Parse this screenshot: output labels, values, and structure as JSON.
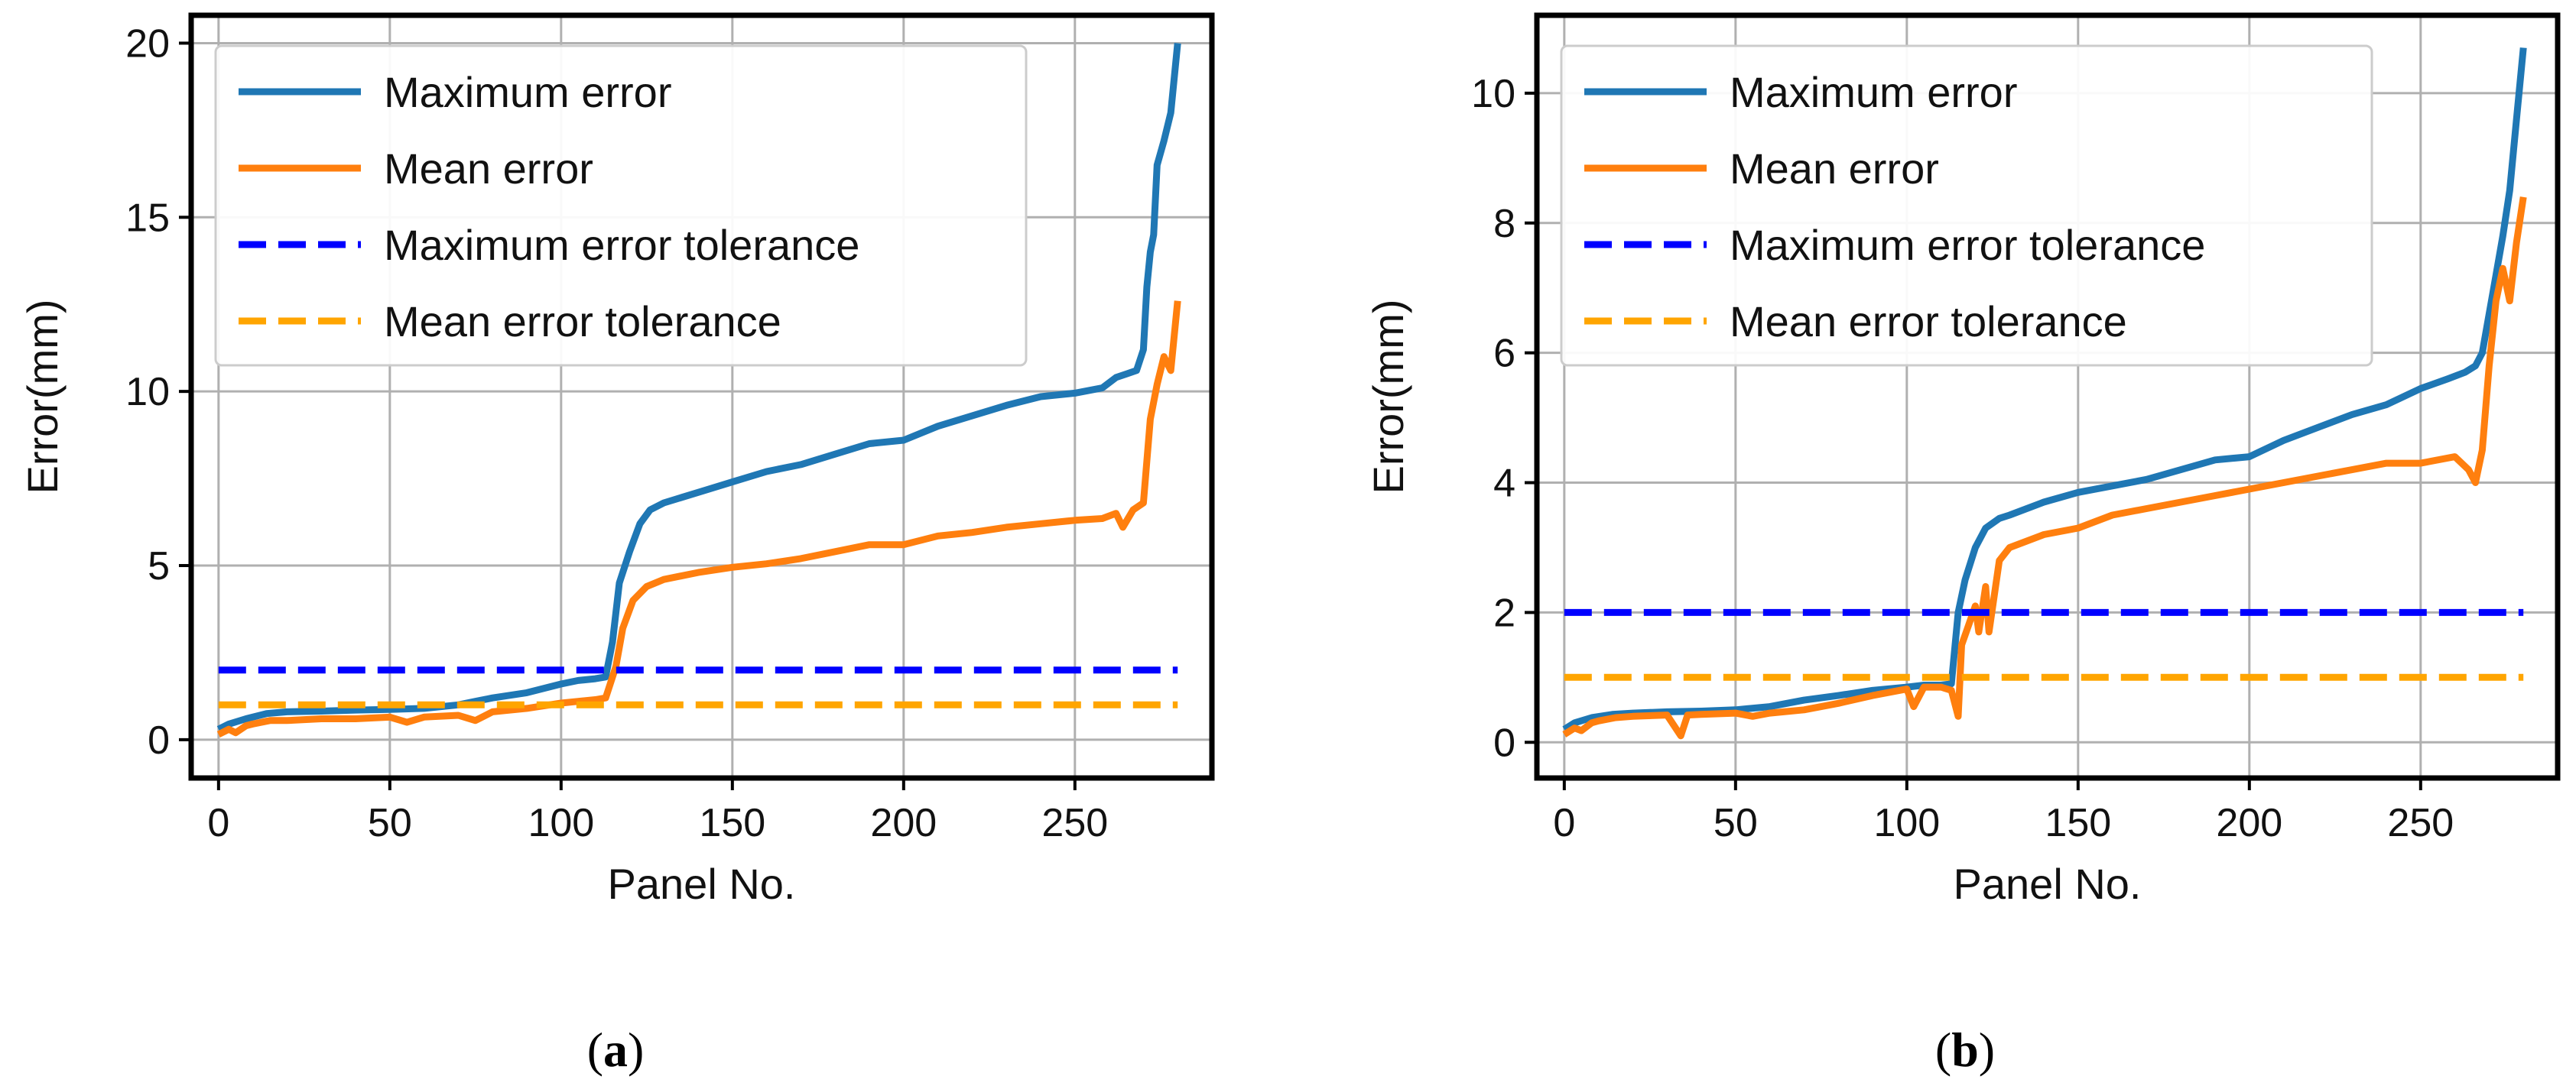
{
  "chart_data": [
    {
      "id": "a",
      "type": "line",
      "caption": "a",
      "xlabel": "Panel No.",
      "ylabel": "Error(mm)",
      "xlim": [
        -8,
        290
      ],
      "ylim": [
        -1.1,
        20.8
      ],
      "xticks": [
        0,
        50,
        100,
        150,
        200,
        250
      ],
      "yticks": [
        0,
        5,
        10,
        15,
        20
      ],
      "grid": true,
      "legend_position": "top-left",
      "colors": {
        "max": "#1f77b4",
        "mean": "#ff7f0e",
        "max_tol": "#0000ff",
        "mean_tol": "#ffa500"
      },
      "series": [
        {
          "key": "max",
          "name": "Maximum error",
          "style": "solid",
          "x": [
            0,
            3,
            8,
            14,
            20,
            30,
            40,
            50,
            60,
            70,
            75,
            80,
            90,
            100,
            105,
            110,
            113,
            115,
            117,
            120,
            123,
            126,
            130,
            140,
            150,
            160,
            170,
            180,
            190,
            200,
            210,
            220,
            230,
            240,
            250,
            258,
            262,
            265,
            268,
            270,
            271,
            272,
            273,
            274,
            276,
            278,
            280
          ],
          "y": [
            0.3,
            0.45,
            0.6,
            0.75,
            0.8,
            0.82,
            0.85,
            0.87,
            0.9,
            1.0,
            1.1,
            1.2,
            1.35,
            1.6,
            1.7,
            1.75,
            1.8,
            2.8,
            4.5,
            5.4,
            6.2,
            6.6,
            6.8,
            7.1,
            7.4,
            7.7,
            7.9,
            8.2,
            8.5,
            8.6,
            9.0,
            9.3,
            9.6,
            9.85,
            9.95,
            10.1,
            10.4,
            10.5,
            10.6,
            11.2,
            13.0,
            14.0,
            14.5,
            16.5,
            17.2,
            18.0,
            20.0
          ]
        },
        {
          "key": "mean",
          "name": "Mean error",
          "style": "solid",
          "x": [
            0,
            3,
            5,
            8,
            10,
            15,
            20,
            30,
            40,
            50,
            55,
            60,
            70,
            75,
            80,
            90,
            100,
            105,
            110,
            113,
            116,
            118,
            121,
            125,
            130,
            140,
            150,
            160,
            170,
            180,
            190,
            200,
            210,
            220,
            230,
            240,
            250,
            258,
            262,
            264,
            267,
            270,
            272,
            274,
            276,
            278,
            280
          ],
          "y": [
            0.15,
            0.3,
            0.2,
            0.4,
            0.45,
            0.55,
            0.55,
            0.6,
            0.6,
            0.65,
            0.5,
            0.65,
            0.7,
            0.55,
            0.8,
            0.9,
            1.05,
            1.1,
            1.15,
            1.2,
            2.1,
            3.2,
            4.0,
            4.4,
            4.6,
            4.8,
            4.95,
            5.05,
            5.2,
            5.4,
            5.6,
            5.6,
            5.85,
            5.95,
            6.1,
            6.2,
            6.3,
            6.35,
            6.5,
            6.1,
            6.6,
            6.8,
            9.2,
            10.2,
            11.0,
            10.6,
            12.6
          ]
        },
        {
          "key": "max_tol",
          "name": "Maximum error tolerance",
          "style": "dashed",
          "x": [
            0,
            280
          ],
          "y": [
            2,
            2
          ]
        },
        {
          "key": "mean_tol",
          "name": "Mean error tolerance",
          "style": "dashed",
          "x": [
            0,
            280
          ],
          "y": [
            1,
            1
          ]
        }
      ]
    },
    {
      "id": "b",
      "type": "line",
      "caption": "b",
      "xlabel": "Panel No.",
      "ylabel": "Error(mm)",
      "xlim": [
        -8,
        290
      ],
      "ylim": [
        -0.55,
        11.2
      ],
      "xticks": [
        0,
        50,
        100,
        150,
        200,
        250
      ],
      "yticks": [
        0,
        2,
        4,
        6,
        8,
        10
      ],
      "grid": true,
      "legend_position": "top-left",
      "colors": {
        "max": "#1f77b4",
        "mean": "#ff7f0e",
        "max_tol": "#0000ff",
        "mean_tol": "#ffa500"
      },
      "series": [
        {
          "key": "max",
          "name": "Maximum error",
          "style": "solid",
          "x": [
            0,
            3,
            8,
            14,
            20,
            30,
            40,
            50,
            60,
            70,
            80,
            90,
            100,
            105,
            110,
            113,
            115,
            117,
            120,
            123,
            127,
            130,
            140,
            150,
            160,
            170,
            180,
            190,
            200,
            210,
            220,
            230,
            240,
            250,
            258,
            263,
            266,
            268,
            270,
            272,
            274,
            276,
            278,
            280
          ],
          "y": [
            0.2,
            0.3,
            0.38,
            0.43,
            0.45,
            0.47,
            0.48,
            0.5,
            0.55,
            0.65,
            0.72,
            0.8,
            0.85,
            0.88,
            0.88,
            0.9,
            2.0,
            2.5,
            3.0,
            3.3,
            3.45,
            3.5,
            3.7,
            3.85,
            3.95,
            4.05,
            4.2,
            4.35,
            4.4,
            4.65,
            4.85,
            5.05,
            5.2,
            5.45,
            5.6,
            5.7,
            5.8,
            6.0,
            6.6,
            7.2,
            7.8,
            8.5,
            9.6,
            10.7
          ]
        },
        {
          "key": "mean",
          "name": "Mean error",
          "style": "solid",
          "x": [
            0,
            3,
            5,
            8,
            10,
            15,
            20,
            30,
            34,
            36,
            40,
            50,
            55,
            60,
            70,
            80,
            90,
            100,
            102,
            105,
            110,
            113,
            115,
            116,
            118,
            120,
            121,
            123,
            124,
            127,
            130,
            140,
            150,
            160,
            170,
            180,
            190,
            200,
            210,
            220,
            230,
            240,
            250,
            260,
            264,
            266,
            268,
            270,
            272,
            274,
            276,
            278,
            280
          ],
          "y": [
            0.12,
            0.22,
            0.18,
            0.3,
            0.33,
            0.38,
            0.4,
            0.42,
            0.1,
            0.42,
            0.43,
            0.45,
            0.4,
            0.45,
            0.5,
            0.6,
            0.72,
            0.82,
            0.55,
            0.85,
            0.85,
            0.8,
            0.4,
            1.5,
            1.8,
            2.1,
            1.7,
            2.4,
            1.7,
            2.8,
            3.0,
            3.2,
            3.3,
            3.5,
            3.6,
            3.7,
            3.8,
            3.9,
            4.0,
            4.1,
            4.2,
            4.3,
            4.3,
            4.4,
            4.2,
            4.0,
            4.5,
            5.8,
            6.8,
            7.3,
            6.8,
            7.7,
            8.4
          ]
        },
        {
          "key": "max_tol",
          "name": "Maximum error tolerance",
          "style": "dashed",
          "x": [
            0,
            280
          ],
          "y": [
            2,
            2
          ]
        },
        {
          "key": "mean_tol",
          "name": "Mean error tolerance",
          "style": "dashed",
          "x": [
            0,
            280
          ],
          "y": [
            1,
            1
          ]
        }
      ]
    }
  ]
}
